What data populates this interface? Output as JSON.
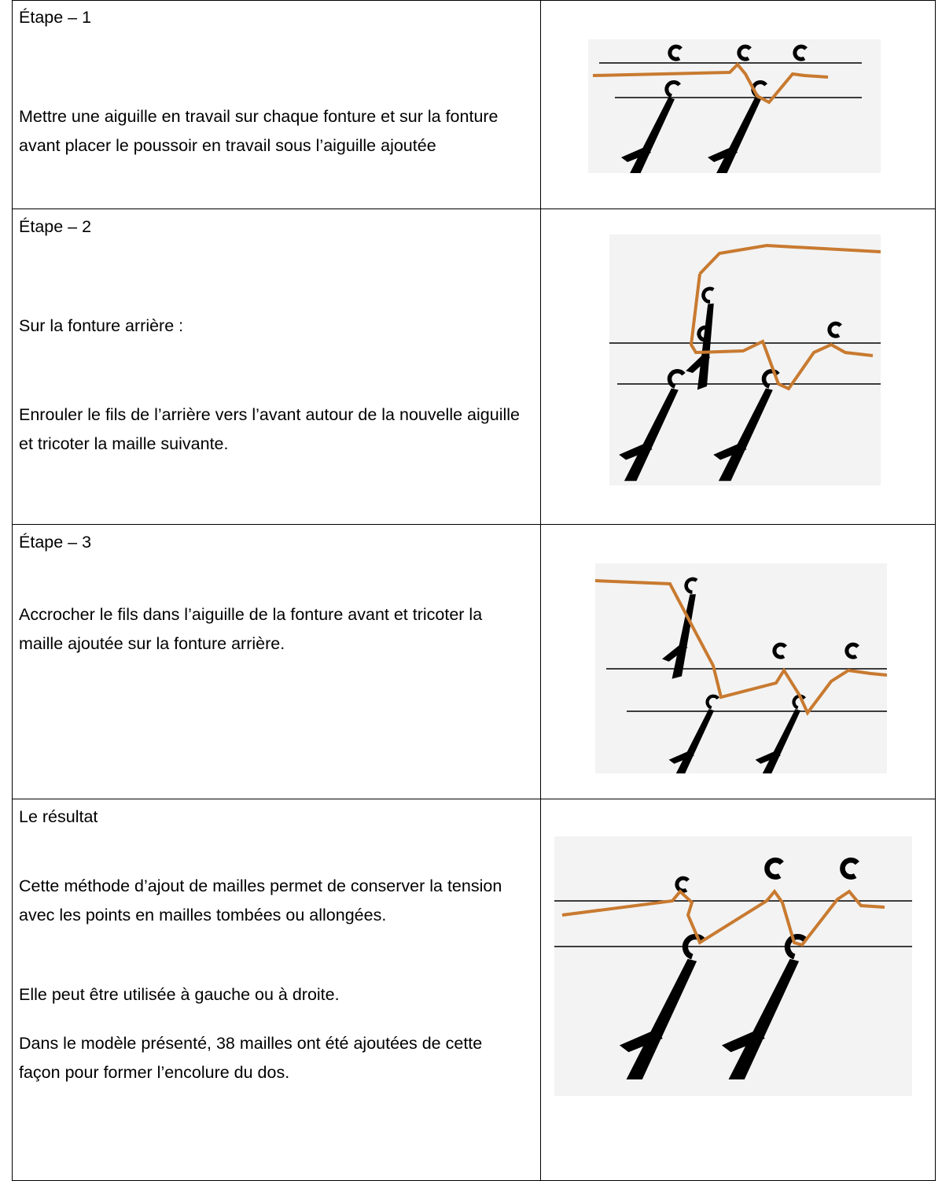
{
  "rows": [
    {
      "title": "Étape – 1",
      "paragraphs": [
        "Mettre une aiguille en travail sur chaque fonture et sur la fonture avant placer le poussoir en travail sous l’aiguille ajoutée"
      ]
    },
    {
      "title": "Étape – 2",
      "paragraphs": [
        "Sur la fonture arrière :",
        "Enrouler le fils de l’arrière vers l’avant autour de la nouvelle aiguille et tricoter la maille suivante."
      ]
    },
    {
      "title": "Étape – 3",
      "paragraphs": [
        "Accrocher le fils dans l’aiguille de la fonture avant et tricoter la maille ajoutée sur la fonture arrière."
      ]
    },
    {
      "title": "Le résultat",
      "paragraphs": [
        "Cette méthode d’ajout de mailles permet de conserver la tension avec les points en mailles tombées ou allongées.",
        "Elle peut être utilisée à gauche ou à droite.",
        "Dans le modèle présenté, 38 mailles ont été ajoutées de cette façon pour former l’encolure du dos."
      ]
    }
  ]
}
